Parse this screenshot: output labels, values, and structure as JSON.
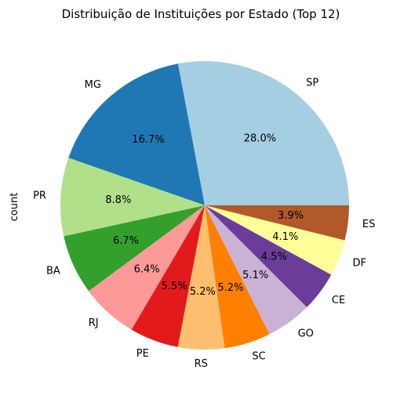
{
  "chart_data": {
    "type": "pie",
    "title": "Distribuição de Instituições por Estado (Top 12)",
    "ylabel": "count",
    "start_angle_deg": 0,
    "direction": "counterclockwise",
    "slices": [
      {
        "label": "SP",
        "percent": 28.0,
        "pct_label": "28.0%",
        "color": "#a6cee3"
      },
      {
        "label": "MG",
        "percent": 16.7,
        "pct_label": "16.7%",
        "color": "#1f78b4"
      },
      {
        "label": "PR",
        "percent": 8.8,
        "pct_label": "8.8%",
        "color": "#b2df8a"
      },
      {
        "label": "BA",
        "percent": 6.7,
        "pct_label": "6.7%",
        "color": "#33a02c"
      },
      {
        "label": "RJ",
        "percent": 6.4,
        "pct_label": "6.4%",
        "color": "#fb9a99"
      },
      {
        "label": "PE",
        "percent": 5.5,
        "pct_label": "5.5%",
        "color": "#e31a1c"
      },
      {
        "label": "RS",
        "percent": 5.2,
        "pct_label": "5.2%",
        "color": "#fdbf6f"
      },
      {
        "label": "SC",
        "percent": 5.2,
        "pct_label": "5.2%",
        "color": "#ff7f00"
      },
      {
        "label": "GO",
        "percent": 5.1,
        "pct_label": "5.1%",
        "color": "#cab2d6"
      },
      {
        "label": "CE",
        "percent": 4.5,
        "pct_label": "4.5%",
        "color": "#6a3d9a"
      },
      {
        "label": "DF",
        "percent": 4.1,
        "pct_label": "4.1%",
        "color": "#ffff99"
      },
      {
        "label": "ES",
        "percent": 3.9,
        "pct_label": "3.9%",
        "color": "#b15928"
      }
    ]
  }
}
